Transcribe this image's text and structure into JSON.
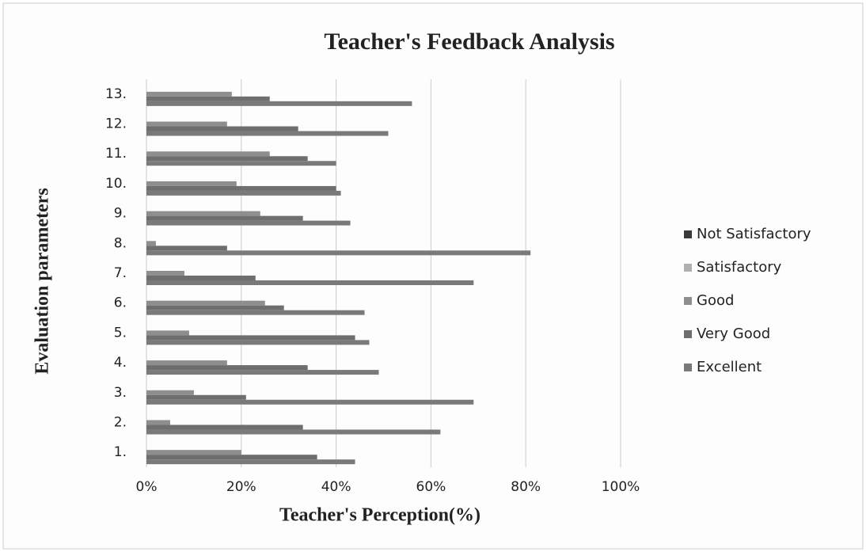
{
  "chart_data": {
    "type": "bar",
    "orientation": "horizontal",
    "title": "Teacher's  Feedback Analysis",
    "xlabel": "Teacher's Perception(%)",
    "ylabel": "Evaluation parameters",
    "categories": [
      "1.",
      "2.",
      "3.",
      "4.",
      "5.",
      "6.",
      "7.",
      "8.",
      "9.",
      "10.",
      "11.",
      "12.",
      "13."
    ],
    "series": [
      {
        "name": "Not Satisfactory",
        "color": "#3a3a3a",
        "values": [
          0,
          0,
          0,
          0,
          0,
          0,
          0,
          0,
          0,
          0,
          0,
          0,
          0
        ]
      },
      {
        "name": "Satisfactory",
        "color": "#b0b0b0",
        "values": [
          0,
          0,
          0,
          0,
          0,
          0,
          0,
          0,
          0,
          0,
          0,
          0,
          0
        ]
      },
      {
        "name": "Good",
        "color": "#8e8e8e",
        "values": [
          20,
          5,
          10,
          17,
          9,
          25,
          8,
          2,
          24,
          19,
          26,
          17,
          18
        ]
      },
      {
        "name": "Very Good",
        "color": "#6e6e6e",
        "values": [
          36,
          33,
          21,
          34,
          44,
          29,
          23,
          17,
          33,
          40,
          34,
          32,
          26
        ]
      },
      {
        "name": "Excellent",
        "color": "#7a7a7a",
        "values": [
          44,
          62,
          69,
          49,
          47,
          46,
          69,
          81,
          43,
          41,
          40,
          51,
          56
        ]
      }
    ],
    "xlim": [
      0,
      100
    ],
    "xticks": [
      {
        "value": 0,
        "label": "0%"
      },
      {
        "value": 20,
        "label": "20%"
      },
      {
        "value": 40,
        "label": "40%"
      },
      {
        "value": 60,
        "label": "60%"
      },
      {
        "value": 80,
        "label": "80%"
      },
      {
        "value": 100,
        "label": "100%"
      }
    ],
    "grid": true,
    "legend": "right"
  }
}
